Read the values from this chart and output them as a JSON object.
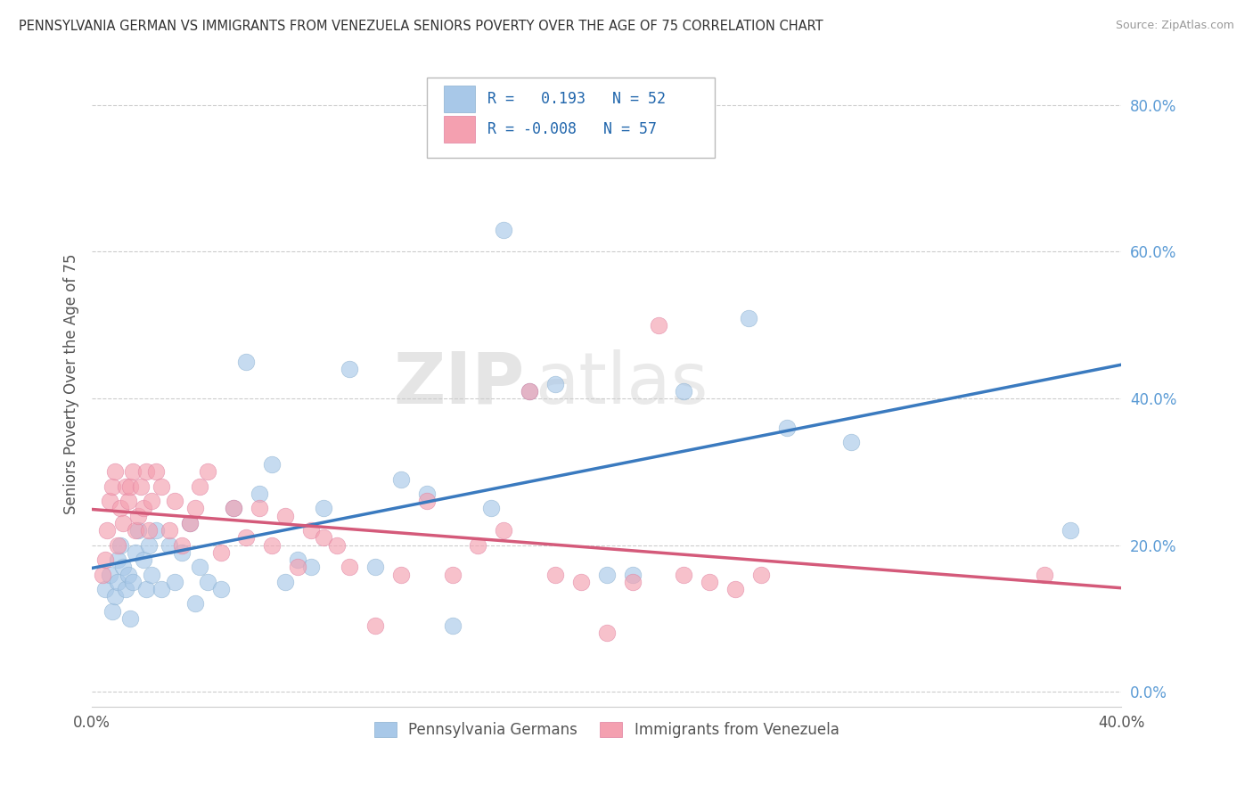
{
  "title": "PENNSYLVANIA GERMAN VS IMMIGRANTS FROM VENEZUELA SENIORS POVERTY OVER THE AGE OF 75 CORRELATION CHART",
  "source": "Source: ZipAtlas.com",
  "ylabel": "Seniors Poverty Over the Age of 75",
  "xlim": [
    0.0,
    0.4
  ],
  "ylim": [
    -0.02,
    0.86
  ],
  "xticks": [
    0.0,
    0.05,
    0.1,
    0.15,
    0.2,
    0.25,
    0.3,
    0.35,
    0.4
  ],
  "yticks": [
    0.0,
    0.2,
    0.4,
    0.6,
    0.8
  ],
  "blue_R": 0.193,
  "blue_N": 52,
  "pink_R": -0.008,
  "pink_N": 57,
  "blue_color": "#a8c8e8",
  "pink_color": "#f4a0b0",
  "blue_line_color": "#3a7abf",
  "pink_line_color": "#d45a7a",
  "watermark_zip": "ZIP",
  "watermark_atlas": "atlas",
  "legend_labels": [
    "Pennsylvania Germans",
    "Immigrants from Venezuela"
  ],
  "blue_scatter_x": [
    0.005,
    0.007,
    0.008,
    0.009,
    0.01,
    0.01,
    0.011,
    0.012,
    0.013,
    0.014,
    0.015,
    0.016,
    0.017,
    0.018,
    0.02,
    0.021,
    0.022,
    0.023,
    0.025,
    0.027,
    0.03,
    0.032,
    0.035,
    0.038,
    0.04,
    0.042,
    0.045,
    0.05,
    0.055,
    0.06,
    0.065,
    0.07,
    0.075,
    0.08,
    0.085,
    0.09,
    0.1,
    0.11,
    0.12,
    0.13,
    0.14,
    0.155,
    0.16,
    0.17,
    0.18,
    0.2,
    0.21,
    0.23,
    0.255,
    0.27,
    0.295,
    0.38
  ],
  "blue_scatter_y": [
    0.14,
    0.16,
    0.11,
    0.13,
    0.15,
    0.18,
    0.2,
    0.17,
    0.14,
    0.16,
    0.1,
    0.15,
    0.19,
    0.22,
    0.18,
    0.14,
    0.2,
    0.16,
    0.22,
    0.14,
    0.2,
    0.15,
    0.19,
    0.23,
    0.12,
    0.17,
    0.15,
    0.14,
    0.25,
    0.45,
    0.27,
    0.31,
    0.15,
    0.18,
    0.17,
    0.25,
    0.44,
    0.17,
    0.29,
    0.27,
    0.09,
    0.25,
    0.63,
    0.41,
    0.42,
    0.16,
    0.16,
    0.41,
    0.51,
    0.36,
    0.34,
    0.22
  ],
  "pink_scatter_x": [
    0.004,
    0.005,
    0.006,
    0.007,
    0.008,
    0.009,
    0.01,
    0.011,
    0.012,
    0.013,
    0.014,
    0.015,
    0.016,
    0.017,
    0.018,
    0.019,
    0.02,
    0.021,
    0.022,
    0.023,
    0.025,
    0.027,
    0.03,
    0.032,
    0.035,
    0.038,
    0.04,
    0.042,
    0.045,
    0.05,
    0.055,
    0.06,
    0.065,
    0.07,
    0.075,
    0.08,
    0.085,
    0.09,
    0.095,
    0.1,
    0.11,
    0.12,
    0.13,
    0.14,
    0.15,
    0.16,
    0.17,
    0.18,
    0.19,
    0.2,
    0.21,
    0.22,
    0.23,
    0.24,
    0.25,
    0.26,
    0.37
  ],
  "pink_scatter_y": [
    0.16,
    0.18,
    0.22,
    0.26,
    0.28,
    0.3,
    0.2,
    0.25,
    0.23,
    0.28,
    0.26,
    0.28,
    0.3,
    0.22,
    0.24,
    0.28,
    0.25,
    0.3,
    0.22,
    0.26,
    0.3,
    0.28,
    0.22,
    0.26,
    0.2,
    0.23,
    0.25,
    0.28,
    0.3,
    0.19,
    0.25,
    0.21,
    0.25,
    0.2,
    0.24,
    0.17,
    0.22,
    0.21,
    0.2,
    0.17,
    0.09,
    0.16,
    0.26,
    0.16,
    0.2,
    0.22,
    0.41,
    0.16,
    0.15,
    0.08,
    0.15,
    0.5,
    0.16,
    0.15,
    0.14,
    0.16,
    0.16
  ]
}
